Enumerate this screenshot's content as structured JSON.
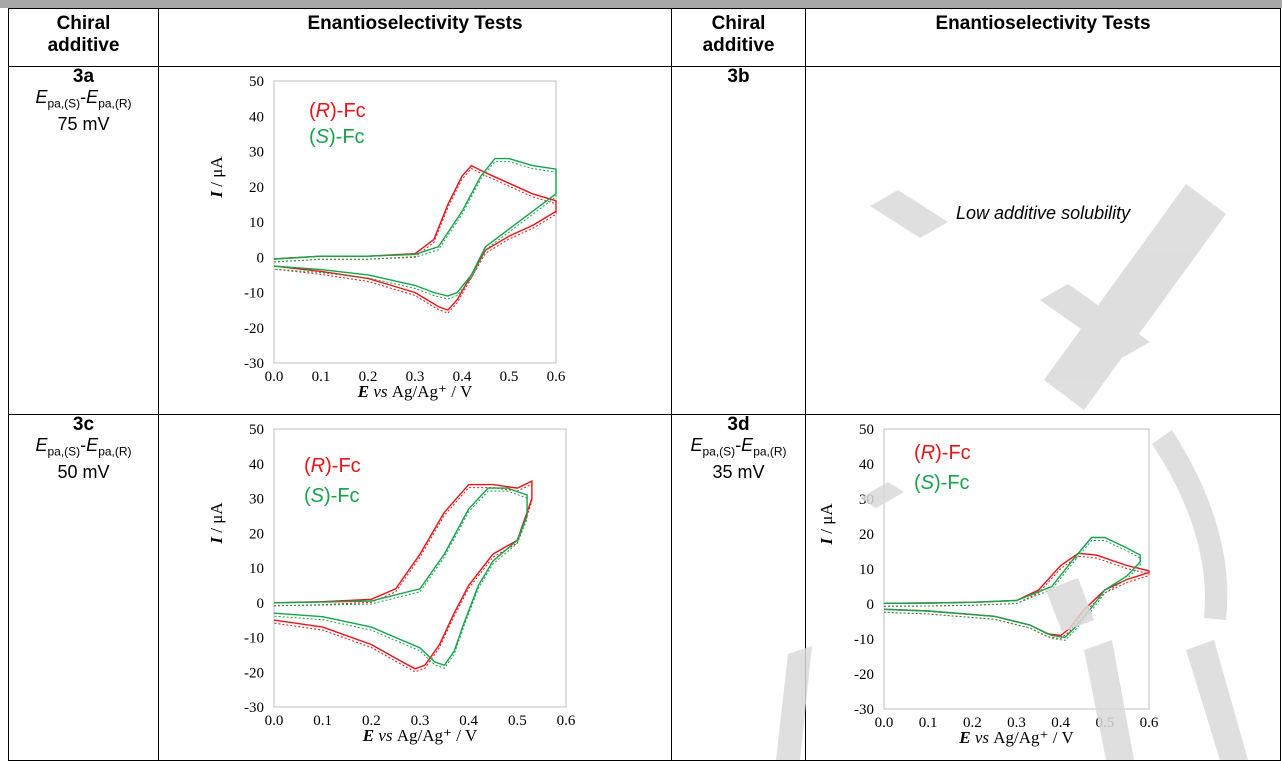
{
  "headers": {
    "col1": [
      "Chiral",
      "additive"
    ],
    "col2": "Enantioselectivity Tests",
    "col3": [
      "Chiral",
      "additive"
    ],
    "col4": "Enantioselectivity Tests"
  },
  "rows": [
    {
      "id": "3a",
      "eq_E1": "E",
      "eq_sub1": "pa,(S)",
      "eq_E2": "E",
      "eq_sub2": "pa,(R)",
      "value": "75 mV"
    },
    {
      "id": "3b",
      "note": "Low additive solubility"
    },
    {
      "id": "3c",
      "eq_E1": "E",
      "eq_sub1": "pa,(S)",
      "eq_E2": "E",
      "eq_sub2": "pa,(R)",
      "value": "50 mV"
    },
    {
      "id": "3d",
      "eq_E1": "E",
      "eq_sub1": "pa,(S)",
      "eq_E2": "E",
      "eq_sub2": "pa,(R)",
      "value": "35 mV"
    }
  ],
  "colors": {
    "R": "#e8141a",
    "S": "#16a34a",
    "watermark": "#d9d9d9",
    "topbar": "#a6a6a6"
  },
  "chart_data": [
    {
      "type": "line",
      "panel": "3a",
      "xlabel_E": "E",
      "xlabel_vs": "vs",
      "xlabel_rest": "Ag/Ag⁺ / V",
      "ylabel_I": "I",
      "ylabel_rest": "/ μA",
      "xlim": [
        0,
        0.6
      ],
      "ylim": [
        -30,
        50
      ],
      "xticks": [
        "0.0",
        "0.1",
        "0.2",
        "0.3",
        "0.4",
        "0.5",
        "0.6"
      ],
      "yticks": [
        "50",
        "40",
        "30",
        "20",
        "10",
        "0",
        "-10",
        "-20",
        "-30"
      ],
      "legend": [
        {
          "prefix": "(",
          "italic": "R",
          "suffix": ")-Fc",
          "color": "#e8141a"
        },
        {
          "prefix": "(",
          "italic": "S",
          "suffix": ")-Fc",
          "color": "#16a34a"
        }
      ],
      "series": [
        {
          "name": "(R)-Fc",
          "color": "#e8141a",
          "points": [
            [
              0.0,
              -0.5
            ],
            [
              0.1,
              0.3
            ],
            [
              0.2,
              0.3
            ],
            [
              0.3,
              1
            ],
            [
              0.34,
              5
            ],
            [
              0.37,
              15
            ],
            [
              0.4,
              23
            ],
            [
              0.42,
              26
            ],
            [
              0.45,
              24
            ],
            [
              0.5,
              21
            ],
            [
              0.55,
              18
            ],
            [
              0.6,
              16
            ],
            [
              0.6,
              13
            ],
            [
              0.55,
              9
            ],
            [
              0.5,
              6
            ],
            [
              0.45,
              2
            ],
            [
              0.42,
              -5
            ],
            [
              0.39,
              -12
            ],
            [
              0.37,
              -15
            ],
            [
              0.35,
              -14
            ],
            [
              0.3,
              -10
            ],
            [
              0.2,
              -6
            ],
            [
              0.1,
              -4
            ],
            [
              0.0,
              -2.5
            ]
          ]
        },
        {
          "name": "(S)-Fc",
          "color": "#16a34a",
          "points": [
            [
              0.0,
              -0.5
            ],
            [
              0.1,
              0.3
            ],
            [
              0.2,
              0.3
            ],
            [
              0.3,
              0.8
            ],
            [
              0.35,
              3
            ],
            [
              0.4,
              13
            ],
            [
              0.44,
              23
            ],
            [
              0.47,
              28
            ],
            [
              0.5,
              28
            ],
            [
              0.55,
              26
            ],
            [
              0.6,
              25
            ],
            [
              0.6,
              18
            ],
            [
              0.55,
              13
            ],
            [
              0.5,
              8
            ],
            [
              0.45,
              3
            ],
            [
              0.42,
              -5
            ],
            [
              0.39,
              -10
            ],
            [
              0.37,
              -11
            ],
            [
              0.34,
              -10
            ],
            [
              0.3,
              -8
            ],
            [
              0.2,
              -5
            ],
            [
              0.1,
              -3.5
            ],
            [
              0.0,
              -2.5
            ]
          ]
        }
      ]
    },
    {
      "type": "line",
      "panel": "3c",
      "xlabel_E": "E",
      "xlabel_vs": "vs",
      "xlabel_rest": "Ag/Ag⁺ / V",
      "ylabel_I": "I",
      "ylabel_rest": "/ μA",
      "xlim": [
        0,
        0.6
      ],
      "ylim": [
        -30,
        50
      ],
      "xticks": [
        "0.0",
        "0.1",
        "0.2",
        "0.3",
        "0.4",
        "0.5",
        "0.6"
      ],
      "yticks": [
        "50",
        "40",
        "30",
        "20",
        "10",
        "0",
        "-10",
        "-20",
        "-30"
      ],
      "legend": [
        {
          "prefix": "(",
          "italic": "R",
          "suffix": ")-Fc",
          "color": "#e8141a"
        },
        {
          "prefix": "(",
          "italic": "S",
          "suffix": ")-Fc",
          "color": "#16a34a"
        }
      ],
      "series": [
        {
          "name": "(R)-Fc",
          "color": "#e8141a",
          "points": [
            [
              0.0,
              0.0
            ],
            [
              0.1,
              0.3
            ],
            [
              0.2,
              1
            ],
            [
              0.25,
              4
            ],
            [
              0.3,
              14
            ],
            [
              0.35,
              26
            ],
            [
              0.4,
              34
            ],
            [
              0.45,
              34
            ],
            [
              0.5,
              33
            ],
            [
              0.53,
              35
            ],
            [
              0.53,
              30
            ],
            [
              0.5,
              18
            ],
            [
              0.45,
              14
            ],
            [
              0.4,
              5
            ],
            [
              0.37,
              -3
            ],
            [
              0.34,
              -12
            ],
            [
              0.31,
              -18
            ],
            [
              0.29,
              -19
            ],
            [
              0.25,
              -16
            ],
            [
              0.2,
              -12
            ],
            [
              0.1,
              -7
            ],
            [
              0.0,
              -5
            ]
          ]
        },
        {
          "name": "(S)-Fc",
          "color": "#16a34a",
          "points": [
            [
              0.0,
              0.0
            ],
            [
              0.1,
              0.2
            ],
            [
              0.2,
              0.5
            ],
            [
              0.3,
              4
            ],
            [
              0.35,
              14
            ],
            [
              0.4,
              27
            ],
            [
              0.44,
              33
            ],
            [
              0.48,
              33
            ],
            [
              0.5,
              32
            ],
            [
              0.52,
              31
            ],
            [
              0.52,
              25
            ],
            [
              0.5,
              18
            ],
            [
              0.45,
              12
            ],
            [
              0.42,
              5
            ],
            [
              0.39,
              -6
            ],
            [
              0.37,
              -14
            ],
            [
              0.35,
              -18
            ],
            [
              0.33,
              -17
            ],
            [
              0.3,
              -13
            ],
            [
              0.2,
              -7
            ],
            [
              0.1,
              -4
            ],
            [
              0.0,
              -3
            ]
          ]
        }
      ]
    },
    {
      "type": "line",
      "panel": "3d",
      "xlabel_E": "E",
      "xlabel_vs": "vs",
      "xlabel_rest": "Ag/Ag⁺ / V",
      "ylabel_I": "I",
      "ylabel_rest": "/ μA",
      "xlim": [
        0,
        0.6
      ],
      "ylim": [
        -30,
        50
      ],
      "xticks": [
        "0.0",
        "0.1",
        "0.2",
        "0.3",
        "0.4",
        "0.5",
        "0.6"
      ],
      "yticks": [
        "50",
        "40",
        "30",
        "20",
        "10",
        "0",
        "-10",
        "-20",
        "-30"
      ],
      "legend": [
        {
          "prefix": "(",
          "italic": "R",
          "suffix": ")-Fc",
          "color": "#e8141a"
        },
        {
          "prefix": "(",
          "italic": "S",
          "suffix": ")-Fc",
          "color": "#16a34a"
        }
      ],
      "series": [
        {
          "name": "(R)-Fc",
          "color": "#e8141a",
          "points": [
            [
              0.0,
              0.2
            ],
            [
              0.1,
              0.3
            ],
            [
              0.2,
              0.5
            ],
            [
              0.3,
              1
            ],
            [
              0.35,
              4
            ],
            [
              0.4,
              11
            ],
            [
              0.44,
              14.5
            ],
            [
              0.48,
              14
            ],
            [
              0.55,
              11
            ],
            [
              0.6,
              9.5
            ],
            [
              0.6,
              9
            ],
            [
              0.55,
              7
            ],
            [
              0.5,
              4
            ],
            [
              0.45,
              -2
            ],
            [
              0.42,
              -7
            ],
            [
              0.4,
              -9
            ],
            [
              0.37,
              -8.5
            ],
            [
              0.33,
              -6
            ],
            [
              0.25,
              -3.5
            ],
            [
              0.1,
              -2
            ],
            [
              0.0,
              -1.5
            ]
          ]
        },
        {
          "name": "(S)-Fc",
          "color": "#16a34a",
          "points": [
            [
              0.0,
              0.2
            ],
            [
              0.1,
              0.3
            ],
            [
              0.2,
              0.5
            ],
            [
              0.3,
              1
            ],
            [
              0.38,
              5
            ],
            [
              0.43,
              13
            ],
            [
              0.47,
              19
            ],
            [
              0.5,
              19
            ],
            [
              0.55,
              16
            ],
            [
              0.58,
              14
            ],
            [
              0.58,
              12
            ],
            [
              0.55,
              8
            ],
            [
              0.5,
              4
            ],
            [
              0.47,
              -1
            ],
            [
              0.43,
              -7
            ],
            [
              0.41,
              -9.5
            ],
            [
              0.38,
              -9
            ],
            [
              0.33,
              -6
            ],
            [
              0.25,
              -3.5
            ],
            [
              0.1,
              -2
            ],
            [
              0.0,
              -1.5
            ]
          ]
        }
      ]
    }
  ]
}
